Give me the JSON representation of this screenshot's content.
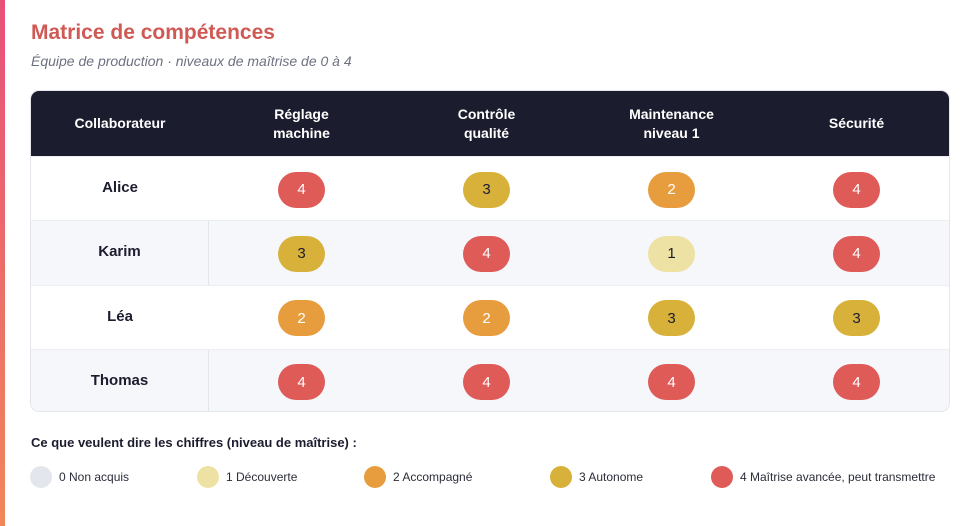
{
  "header": {
    "title": "Matrice de compétences",
    "subtitle": "Équipe de production · niveaux de maîtrise de 0 à 4"
  },
  "table": {
    "columns": [
      "Collaborateur",
      "Réglage\nmachine",
      "Contrôle\nqualité",
      "Maintenance\nniveau 1",
      "Sécurité"
    ],
    "rows": [
      {
        "name": "Alice",
        "scores": [
          "4",
          "3",
          "2",
          "4"
        ]
      },
      {
        "name": "Karim",
        "scores": [
          "3",
          "4",
          "1",
          "4"
        ]
      },
      {
        "name": "Léa",
        "scores": [
          "2",
          "2",
          "3",
          "3"
        ]
      },
      {
        "name": "Thomas",
        "scores": [
          "4",
          "4",
          "4",
          "4"
        ]
      }
    ]
  },
  "legend": {
    "title": "Ce que veulent dire les chiffres (niveau de maîtrise) :",
    "items": [
      {
        "label": "0 Non acquis",
        "color": "#e3e6ec"
      },
      {
        "label": "1 Découverte",
        "color": "#ede2a4"
      },
      {
        "label": "2 Accompagné",
        "color": "#e79d3e"
      },
      {
        "label": "3 Autonome",
        "color": "#d8b13b"
      },
      {
        "label": "4 Maîtrise avancée, peut transmettre",
        "color": "#de5b58"
      }
    ]
  },
  "colors": {
    "accent": "#cf5a55",
    "header_bg": "#1c1c2f"
  }
}
